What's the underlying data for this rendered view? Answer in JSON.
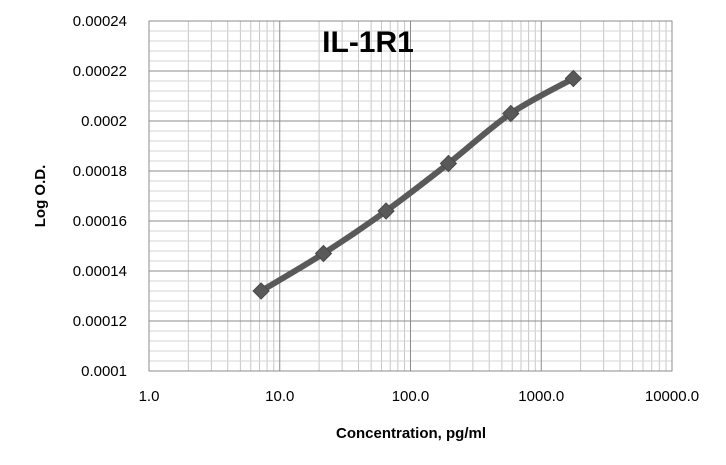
{
  "chart_data": {
    "type": "line",
    "title": "IL-1R1",
    "xlabel": "Concentration, pg/ml",
    "ylabel": "Log O.D.",
    "x_scale": "log",
    "xlim": [
      1,
      10000
    ],
    "ylim": [
      0.0001,
      0.00024
    ],
    "x_ticks": [
      "1.0",
      "10.0",
      "100.0",
      "1000.0",
      "10000.0"
    ],
    "y_ticks": [
      "0.0001",
      "0.00012",
      "0.00014",
      "0.00016",
      "0.00018",
      "0.0002",
      "0.00022",
      "0.00024"
    ],
    "grid": true,
    "marker": "diamond",
    "series_color": "#595959",
    "series": [
      {
        "x": [
          7.2,
          21.6,
          65,
          195,
          585,
          1760
        ],
        "y": [
          0.000132,
          0.000147,
          0.000164,
          0.000183,
          0.000203,
          0.000217
        ]
      }
    ]
  }
}
